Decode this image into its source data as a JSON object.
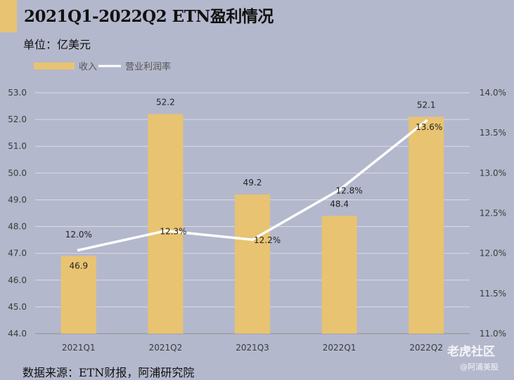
{
  "header": {
    "title": "2021Q1-2022Q2 ETN盈利情况",
    "unit": "单位：亿美元"
  },
  "footer": {
    "source": "数据来源：ETN财报，阿浦研究院",
    "watermark": "老虎社区",
    "watermark_sub": "@阿浦美股"
  },
  "colors": {
    "background": "#b4b8cc",
    "bar": "#e8c371",
    "line": "#ffffff",
    "accent": "#e8c371"
  },
  "chart_data": {
    "type": "bar",
    "title": "2021Q1-2022Q2 ETN盈利情况",
    "categories": [
      "2021Q1",
      "2021Q2",
      "2021Q3",
      "2022Q1",
      "2022Q2"
    ],
    "series": [
      {
        "name": "收入",
        "type": "bar",
        "axis": "left",
        "values": [
          46.9,
          52.2,
          49.2,
          48.4,
          52.1
        ],
        "labels": [
          "46.9",
          "52.2",
          "49.2",
          "48.4",
          "52.1"
        ]
      },
      {
        "name": "营业利润率",
        "type": "line",
        "axis": "right",
        "values": [
          12.04,
          12.28,
          12.17,
          12.79,
          13.65
        ],
        "labels": [
          "12.0%",
          "12.3%",
          "12.2%",
          "12.8%",
          "13.6%"
        ]
      }
    ],
    "y_left": {
      "min": 44.0,
      "max": 53.0,
      "step": 1.0,
      "ticks": [
        "44.0",
        "45.0",
        "46.0",
        "47.0",
        "48.0",
        "49.0",
        "50.0",
        "51.0",
        "52.0",
        "53.0"
      ]
    },
    "y_right": {
      "min": 11.0,
      "max": 14.0,
      "step": 0.5,
      "ticks": [
        "11.0%",
        "11.5%",
        "12.0%",
        "12.5%",
        "13.0%",
        "13.5%",
        "14.0%"
      ]
    },
    "legend": [
      "收入",
      "营业利润率"
    ],
    "legend_position": "top-left",
    "grid": true
  }
}
